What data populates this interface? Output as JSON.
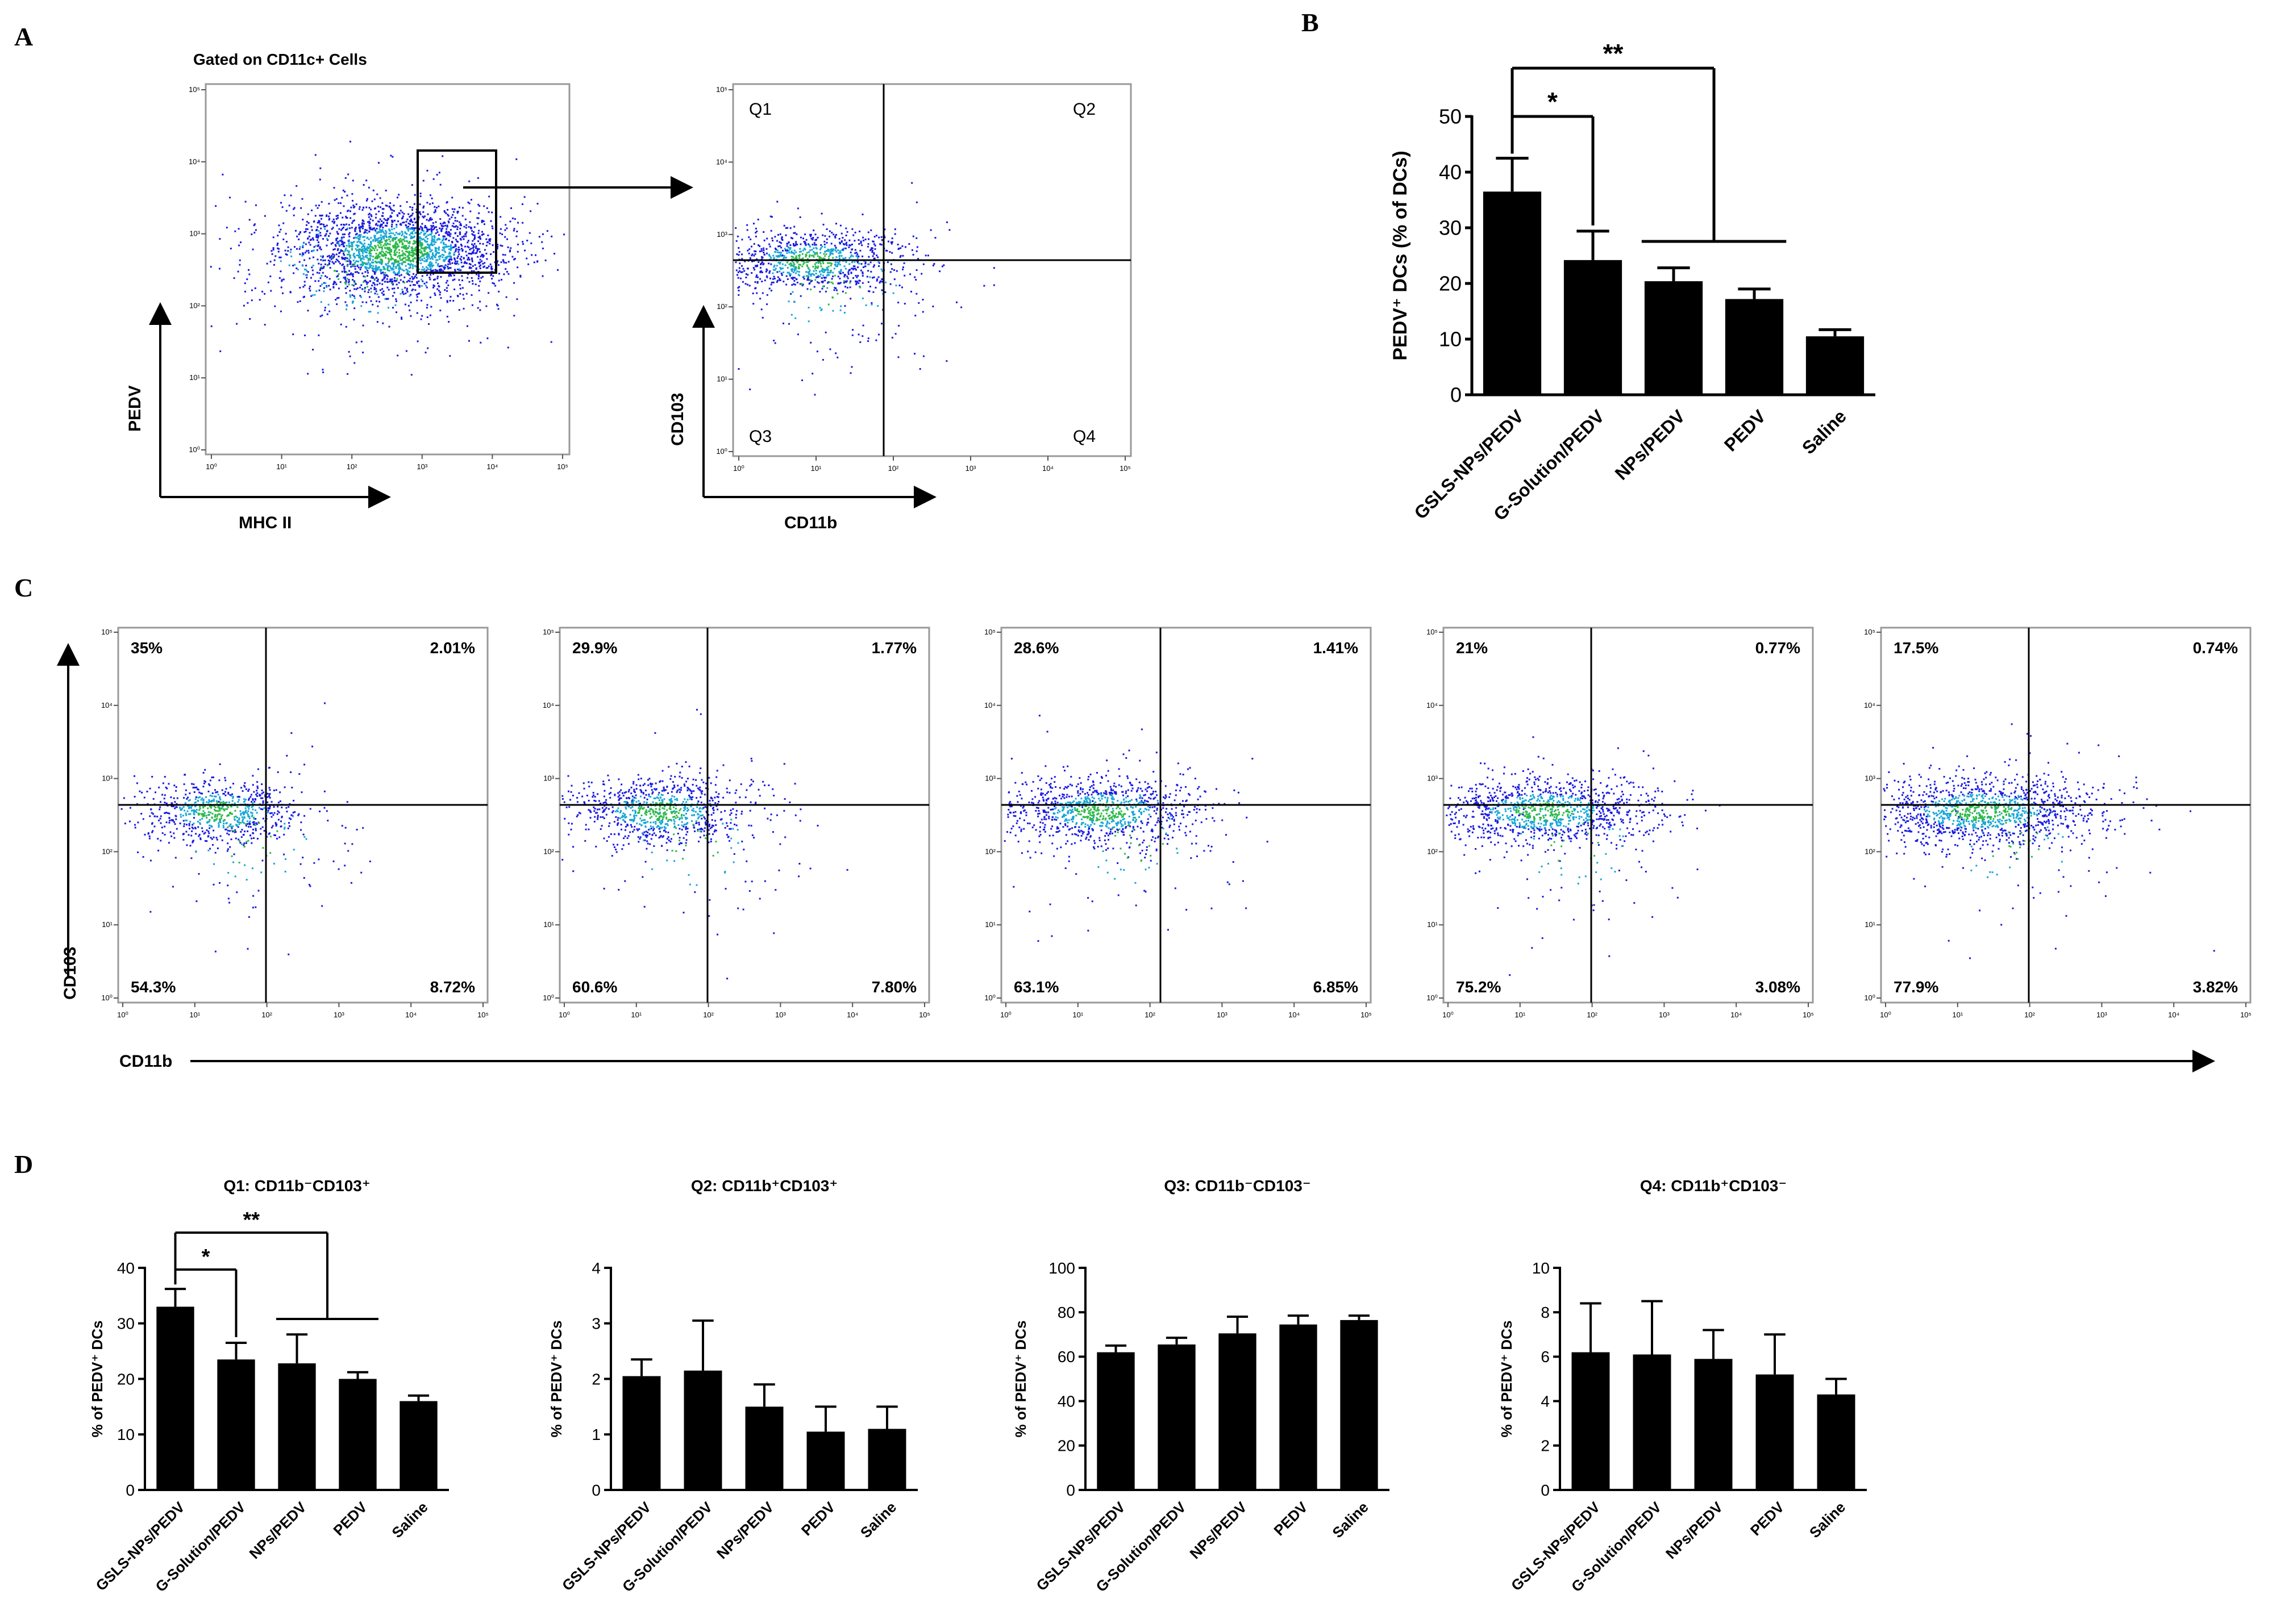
{
  "panels": {
    "A": {
      "letter": "A",
      "gate_title": "Gated on CD11c+ Cells",
      "gate_xlabel": "MHC II",
      "gate_ylabel": "PEDV",
      "quad_xlabel": "CD11b",
      "quad_ylabel": "CD103",
      "quadrant_names": [
        "Q1",
        "Q2",
        "Q3",
        "Q4"
      ]
    },
    "B": {
      "letter": "B"
    },
    "C": {
      "letter": "C",
      "xlabel": "CD11b",
      "ylabel": "CD103",
      "plots": [
        {
          "q1": "35%",
          "q2": "2.01%",
          "q3": "54.3%",
          "q4": "8.72%"
        },
        {
          "q1": "29.9%",
          "q2": "1.77%",
          "q3": "60.6%",
          "q4": "7.80%"
        },
        {
          "q1": "28.6%",
          "q2": "1.41%",
          "q3": "63.1%",
          "q4": "6.85%"
        },
        {
          "q1": "21%",
          "q2": "0.77%",
          "q3": "75.2%",
          "q4": "3.08%"
        },
        {
          "q1": "17.5%",
          "q2": "0.74%",
          "q3": "77.9%",
          "q4": "3.82%"
        }
      ]
    },
    "D": {
      "letter": "D"
    }
  },
  "flow_axis": {
    "tick_labels": [
      "10⁰",
      "10¹",
      "10²",
      "10³",
      "10⁴",
      "10⁵"
    ]
  },
  "colors": {
    "bar": "#000000",
    "dot_dense": "#2db84a",
    "dot_mid": "#16a6d6",
    "dot_sparse": "#1a1ae0",
    "frame": "#999999"
  },
  "chart_data": [
    {
      "id": "B",
      "type": "bar",
      "title": "",
      "categories": [
        "GSLS-NPs/PEDV",
        "G-Solution/PEDV",
        "NPs/PEDV",
        "PEDV",
        "Saline"
      ],
      "values": [
        36.5,
        24.2,
        20.4,
        17.2,
        10.5
      ],
      "errors": [
        6.0,
        5.2,
        2.4,
        1.8,
        1.2
      ],
      "xlabel": "",
      "ylabel": "PEDV⁺ DCs (% of DCs)",
      "ylim": [
        0,
        50
      ],
      "yticks": [
        0,
        10,
        20,
        30,
        40,
        50
      ],
      "significance": [
        {
          "from": 0,
          "to": [
            1
          ],
          "label": "*"
        },
        {
          "from": 0,
          "to": [
            2,
            3
          ],
          "label": "**"
        }
      ]
    },
    {
      "id": "D-Q1",
      "type": "bar",
      "title": "Q1: CD11b⁻CD103⁺",
      "categories": [
        "GSLS-NPs/PEDV",
        "G-Solution/PEDV",
        "NPs/PEDV",
        "PEDV",
        "Saline"
      ],
      "values": [
        33.0,
        23.5,
        22.8,
        20.0,
        16.0
      ],
      "errors": [
        3.2,
        3.0,
        5.2,
        1.2,
        1.0
      ],
      "xlabel": "",
      "ylabel": "% of PEDV⁺ DCs",
      "ylim": [
        0,
        40
      ],
      "yticks": [
        0,
        10,
        20,
        30,
        40
      ],
      "significance": [
        {
          "from": 0,
          "to": [
            1
          ],
          "label": "*"
        },
        {
          "from": 0,
          "to": [
            2,
            3
          ],
          "label": "**"
        }
      ]
    },
    {
      "id": "D-Q2",
      "type": "bar",
      "title": "Q2: CD11b⁺CD103⁺",
      "categories": [
        "GSLS-NPs/PEDV",
        "G-Solution/PEDV",
        "NPs/PEDV",
        "PEDV",
        "Saline"
      ],
      "values": [
        2.05,
        2.15,
        1.5,
        1.05,
        1.1
      ],
      "errors": [
        0.3,
        0.9,
        0.4,
        0.45,
        0.4
      ],
      "xlabel": "",
      "ylabel": "% of PEDV⁺ DCs",
      "ylim": [
        0,
        4
      ],
      "yticks": [
        0,
        1,
        2,
        3,
        4
      ],
      "significance": []
    },
    {
      "id": "D-Q3",
      "type": "bar",
      "title": "Q3: CD11b⁻CD103⁻",
      "categories": [
        "GSLS-NPs/PEDV",
        "G-Solution/PEDV",
        "NPs/PEDV",
        "PEDV",
        "Saline"
      ],
      "values": [
        62,
        65.5,
        70.5,
        74.5,
        76.5
      ],
      "errors": [
        3,
        3,
        7.5,
        4,
        2
      ],
      "xlabel": "",
      "ylabel": "% of PEDV⁺ DCs",
      "ylim": [
        0,
        100
      ],
      "yticks": [
        0,
        20,
        40,
        60,
        80,
        100
      ],
      "significance": []
    },
    {
      "id": "D-Q4",
      "type": "bar",
      "title": "Q4: CD11b⁺CD103⁻",
      "categories": [
        "GSLS-NPs/PEDV",
        "G-Solution/PEDV",
        "NPs/PEDV",
        "PEDV",
        "Saline"
      ],
      "values": [
        6.2,
        6.1,
        5.9,
        5.2,
        4.3
      ],
      "errors": [
        2.2,
        2.4,
        1.3,
        1.8,
        0.7
      ],
      "xlabel": "",
      "ylabel": "% of PEDV⁺ DCs",
      "ylim": [
        0,
        10
      ],
      "yticks": [
        0,
        2,
        4,
        6,
        8,
        10
      ],
      "significance": []
    }
  ]
}
